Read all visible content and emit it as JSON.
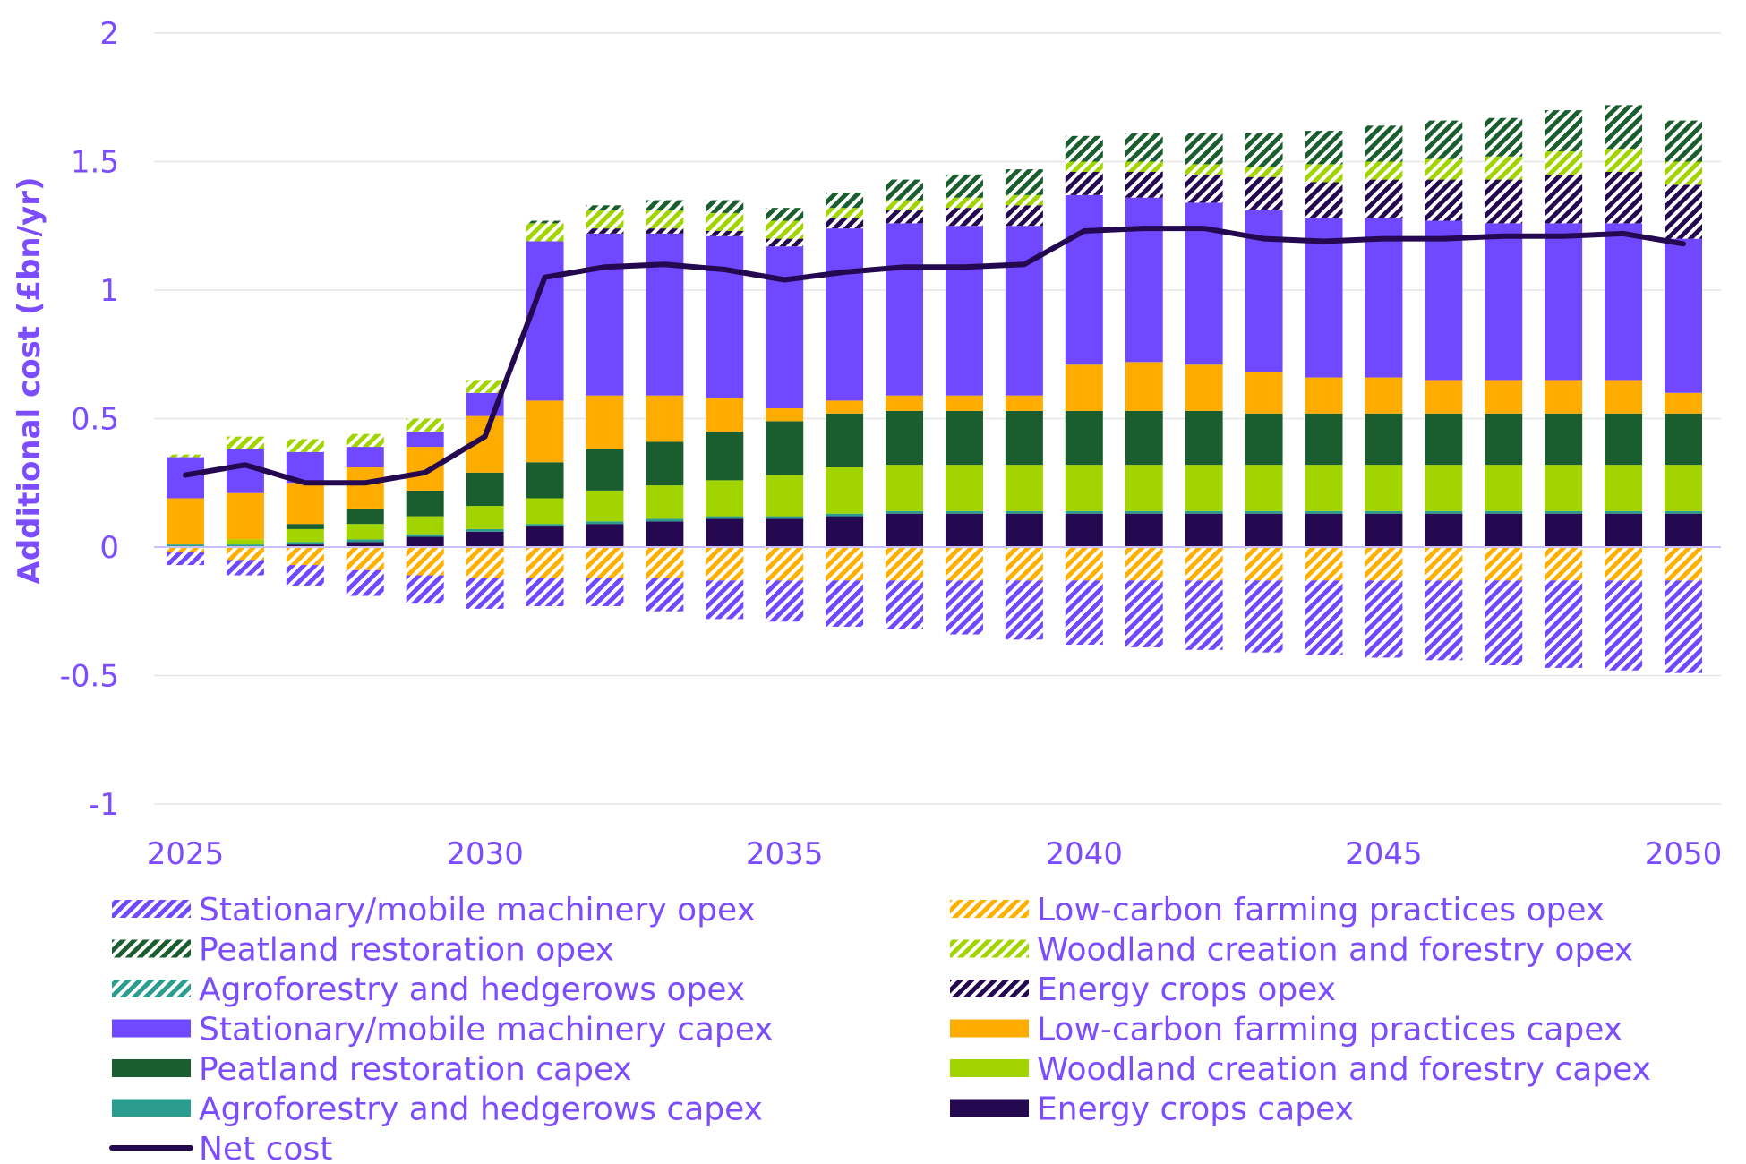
{
  "chart_data": {
    "type": "bar",
    "stacked": true,
    "ylabel": "Additional cost (£bn/yr)",
    "xlabel": "",
    "ylim": [
      -1,
      2
    ],
    "yticks": [
      -1,
      -0.5,
      0,
      0.5,
      1,
      1.5,
      2
    ],
    "ytick_labels": [
      "-1",
      "-0.5",
      "0",
      "0.5",
      "1",
      "1.5",
      "2"
    ],
    "xtick_labels": [
      "2025",
      "2030",
      "2035",
      "2040",
      "2045",
      "2050"
    ],
    "xtick_years": [
      2025,
      2030,
      2035,
      2040,
      2045,
      2050
    ],
    "grid": "horizontal",
    "legend_position": "bottom",
    "x": [
      2025,
      2026,
      2027,
      2028,
      2029,
      2030,
      2031,
      2032,
      2033,
      2034,
      2035,
      2036,
      2037,
      2038,
      2039,
      2040,
      2041,
      2042,
      2043,
      2044,
      2045,
      2046,
      2047,
      2048,
      2049,
      2050
    ],
    "negative_series": [
      {
        "name": "Low-carbon farming practices opex",
        "color": "#ffb000",
        "pattern": "hatch",
        "values": [
          -0.02,
          -0.05,
          -0.07,
          -0.09,
          -0.11,
          -0.12,
          -0.12,
          -0.12,
          -0.12,
          -0.13,
          -0.13,
          -0.13,
          -0.13,
          -0.13,
          -0.13,
          -0.13,
          -0.13,
          -0.13,
          -0.13,
          -0.13,
          -0.13,
          -0.13,
          -0.13,
          -0.13,
          -0.13,
          -0.13
        ]
      },
      {
        "name": "Stationary/mobile machinery opex",
        "color": "#7048ff",
        "pattern": "hatch",
        "values": [
          -0.05,
          -0.06,
          -0.08,
          -0.1,
          -0.11,
          -0.12,
          -0.11,
          -0.11,
          -0.13,
          -0.15,
          -0.16,
          -0.18,
          -0.19,
          -0.21,
          -0.23,
          -0.25,
          -0.26,
          -0.27,
          -0.28,
          -0.29,
          -0.3,
          -0.31,
          -0.33,
          -0.34,
          -0.35,
          -0.36
        ]
      }
    ],
    "positive_series": [
      {
        "name": "Energy crops capex",
        "color": "#240850",
        "pattern": "solid",
        "values": [
          0,
          0,
          0.01,
          0.02,
          0.04,
          0.06,
          0.08,
          0.09,
          0.1,
          0.11,
          0.11,
          0.12,
          0.13,
          0.13,
          0.13,
          0.13,
          0.13,
          0.13,
          0.13,
          0.13,
          0.13,
          0.13,
          0.13,
          0.13,
          0.13,
          0.13
        ]
      },
      {
        "name": "Agroforestry and hedgerows capex",
        "color": "#2a9d8f",
        "pattern": "solid",
        "values": [
          0.01,
          0.01,
          0.01,
          0.01,
          0.01,
          0.01,
          0.01,
          0.01,
          0.01,
          0.01,
          0.01,
          0.01,
          0.01,
          0.01,
          0.01,
          0.01,
          0.01,
          0.01,
          0.01,
          0.01,
          0.01,
          0.01,
          0.01,
          0.01,
          0.01,
          0.01
        ]
      },
      {
        "name": "Woodland creation and forestry capex",
        "color": "#a2d500",
        "pattern": "solid",
        "values": [
          0.0,
          0.02,
          0.05,
          0.06,
          0.07,
          0.09,
          0.1,
          0.12,
          0.13,
          0.14,
          0.16,
          0.18,
          0.18,
          0.18,
          0.18,
          0.18,
          0.18,
          0.18,
          0.18,
          0.18,
          0.18,
          0.18,
          0.18,
          0.18,
          0.18,
          0.18
        ]
      },
      {
        "name": "Peatland restoration capex",
        "color": "#1a5e30",
        "pattern": "solid",
        "values": [
          0,
          0,
          0.02,
          0.06,
          0.1,
          0.13,
          0.14,
          0.16,
          0.17,
          0.19,
          0.21,
          0.21,
          0.21,
          0.21,
          0.21,
          0.21,
          0.21,
          0.21,
          0.2,
          0.2,
          0.2,
          0.2,
          0.2,
          0.2,
          0.2,
          0.2
        ]
      },
      {
        "name": "Low-carbon farming practices capex",
        "color": "#ffac00",
        "pattern": "solid",
        "values": [
          0.18,
          0.18,
          0.16,
          0.16,
          0.17,
          0.22,
          0.24,
          0.21,
          0.18,
          0.13,
          0.05,
          0.05,
          0.06,
          0.06,
          0.06,
          0.18,
          0.19,
          0.18,
          0.16,
          0.14,
          0.14,
          0.13,
          0.13,
          0.13,
          0.13,
          0.08
        ]
      },
      {
        "name": "Stationary/mobile machinery capex",
        "color": "#7048ff",
        "pattern": "solid",
        "values": [
          0.16,
          0.17,
          0.12,
          0.08,
          0.06,
          0.09,
          0.62,
          0.63,
          0.63,
          0.63,
          0.63,
          0.67,
          0.67,
          0.66,
          0.66,
          0.66,
          0.64,
          0.63,
          0.63,
          0.62,
          0.62,
          0.62,
          0.61,
          0.61,
          0.61,
          0.6
        ]
      },
      {
        "name": "Energy crops opex",
        "color": "#240850",
        "pattern": "hatch",
        "values": [
          0,
          0,
          0,
          0,
          0,
          0,
          0,
          0.02,
          0.02,
          0.02,
          0.03,
          0.04,
          0.05,
          0.07,
          0.08,
          0.09,
          0.1,
          0.11,
          0.13,
          0.14,
          0.15,
          0.16,
          0.17,
          0.19,
          0.2,
          0.21
        ]
      },
      {
        "name": "Agroforestry and hedgerows opex",
        "color": "#2a9d8f",
        "pattern": "hatch",
        "values": [
          0,
          0,
          0,
          0,
          0,
          0,
          0,
          0,
          0,
          0,
          0,
          0,
          0,
          0,
          0,
          0,
          0,
          0,
          0,
          0,
          0,
          0,
          0,
          0,
          0,
          0
        ]
      },
      {
        "name": "Woodland creation and forestry opex",
        "color": "#a2d500",
        "pattern": "hatch",
        "values": [
          0.01,
          0.05,
          0.05,
          0.05,
          0.05,
          0.05,
          0.07,
          0.07,
          0.07,
          0.07,
          0.07,
          0.04,
          0.04,
          0.04,
          0.04,
          0.04,
          0.04,
          0.04,
          0.04,
          0.07,
          0.07,
          0.08,
          0.09,
          0.09,
          0.09,
          0.09
        ]
      },
      {
        "name": "Peatland restoration opex",
        "color": "#1a5e30",
        "pattern": "hatch",
        "values": [
          0,
          0,
          0,
          0,
          0,
          0,
          0.01,
          0.02,
          0.04,
          0.05,
          0.05,
          0.06,
          0.08,
          0.09,
          0.1,
          0.1,
          0.11,
          0.12,
          0.13,
          0.13,
          0.14,
          0.15,
          0.15,
          0.16,
          0.17,
          0.16
        ]
      }
    ],
    "line_series": {
      "name": "Net cost",
      "color": "#240850",
      "values": [
        0.28,
        0.32,
        0.25,
        0.25,
        0.29,
        0.43,
        1.05,
        1.09,
        1.1,
        1.08,
        1.04,
        1.07,
        1.09,
        1.09,
        1.1,
        1.23,
        1.24,
        1.24,
        1.2,
        1.19,
        1.2,
        1.2,
        1.21,
        1.21,
        1.22,
        1.18
      ]
    },
    "legend": [
      {
        "name": "Stationary/mobile machinery opex",
        "color": "#7048ff",
        "pattern": "hatch"
      },
      {
        "name": "Low-carbon farming practices opex",
        "color": "#ffb000",
        "pattern": "hatch"
      },
      {
        "name": "Peatland restoration opex",
        "color": "#1a5e30",
        "pattern": "hatch"
      },
      {
        "name": "Woodland creation and forestry opex",
        "color": "#a2d500",
        "pattern": "hatch"
      },
      {
        "name": "Agroforestry and hedgerows opex",
        "color": "#2a9d8f",
        "pattern": "hatch"
      },
      {
        "name": "Energy crops opex",
        "color": "#240850",
        "pattern": "hatch"
      },
      {
        "name": "Stationary/mobile machinery capex",
        "color": "#7048ff",
        "pattern": "solid"
      },
      {
        "name": "Low-carbon farming practices capex",
        "color": "#ffac00",
        "pattern": "solid"
      },
      {
        "name": "Peatland restoration capex",
        "color": "#1a5e30",
        "pattern": "solid"
      },
      {
        "name": "Woodland creation and forestry capex",
        "color": "#a2d500",
        "pattern": "solid"
      },
      {
        "name": "Agroforestry and hedgerows capex",
        "color": "#2a9d8f",
        "pattern": "solid"
      },
      {
        "name": "Energy crops capex",
        "color": "#240850",
        "pattern": "solid"
      },
      {
        "name": "Net cost",
        "color": "#240850",
        "pattern": "line"
      }
    ]
  }
}
